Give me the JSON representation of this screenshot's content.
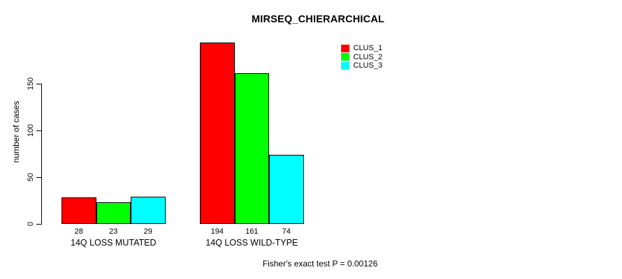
{
  "title": "MIRSEQ_CHIERARCHICAL",
  "footer": "Fisher's exact test P = 0.00126",
  "y_axis": {
    "label": "number of cases",
    "ticks": [
      0,
      50,
      100,
      150
    ]
  },
  "chart_data": {
    "type": "bar",
    "title": "MIRSEQ_CHIERARCHICAL",
    "categories": [
      "14Q LOSS MUTATED",
      "14Q LOSS WILD-TYPE"
    ],
    "series": [
      {
        "name": "CLUS_1",
        "color": "#FF0000",
        "values": [
          28,
          194
        ]
      },
      {
        "name": "CLUS_2",
        "color": "#00FF00",
        "values": [
          23,
          161
        ]
      },
      {
        "name": "CLUS_3",
        "color": "#00FFFF",
        "values": [
          29,
          74
        ]
      }
    ],
    "bar_value_labels": [
      [
        "28",
        "23",
        "29"
      ],
      [
        "194",
        "161",
        "74"
      ]
    ],
    "xlabel": "",
    "ylabel": "number of cases",
    "yticks": [
      0,
      50,
      100,
      150
    ],
    "ylim": [
      0,
      200
    ],
    "grid": false,
    "legend_position": "top-right",
    "bar_border_color": "#000000",
    "background_color": "#FFFFFF",
    "annotation": "Fisher's exact test P = 0.00126"
  }
}
